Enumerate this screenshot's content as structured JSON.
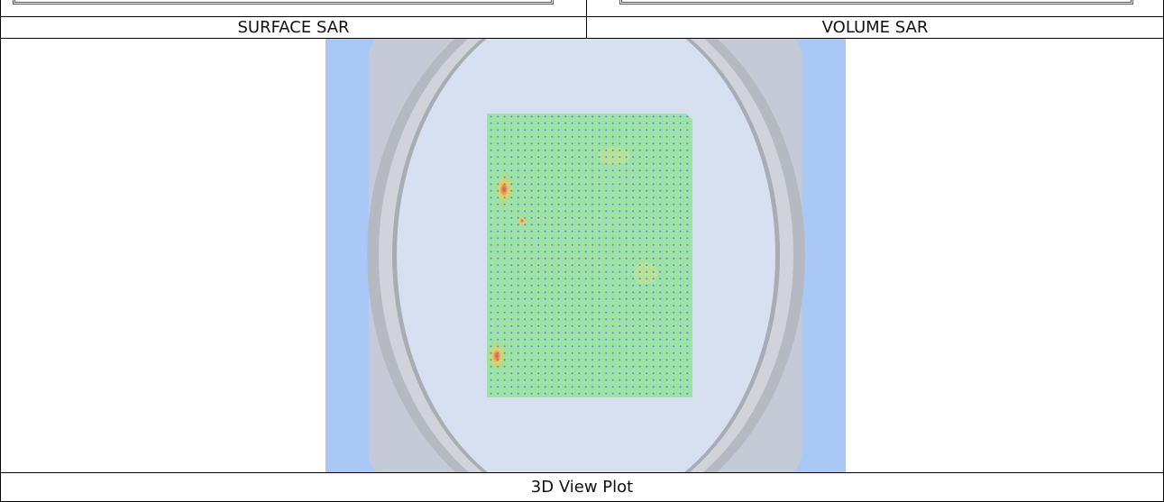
{
  "table": {
    "rows": [
      [
        "SURFACE SAR",
        "VOLUME SAR"
      ],
      [
        "3D View Plot"
      ]
    ]
  }
}
